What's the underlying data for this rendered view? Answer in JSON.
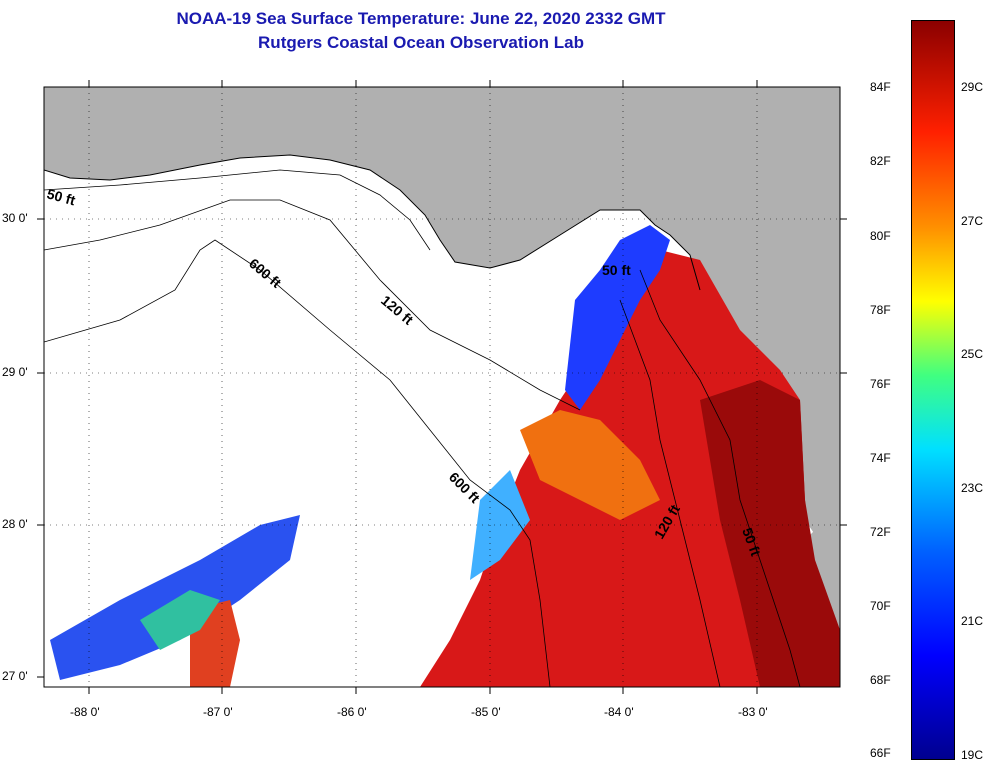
{
  "header": {
    "title": "NOAA-19 Sea Surface Temperature:  June 22, 2020 2332 GMT",
    "subtitle": "Rutgers Coastal Ocean Observation Lab"
  },
  "map": {
    "lat_labels": [
      "30 0'",
      "29 0'",
      "28 0'",
      "27 0'"
    ],
    "lon_labels": [
      "-88 0'",
      "-87 0'",
      "-86 0'",
      "-85 0'",
      "-84 0'",
      "-83 0'"
    ],
    "contours": [
      "50 ft",
      "600 ft",
      "120 ft",
      "50 ft",
      "600 ft",
      "120 ft",
      "50 ft"
    ]
  },
  "colorbar": {
    "fahrenheit": [
      "84F",
      "82F",
      "80F",
      "78F",
      "76F",
      "74F",
      "72F",
      "70F",
      "68F",
      "66F"
    ],
    "celsius": [
      "29C",
      "27C",
      "25C",
      "23C",
      "21C",
      "19C"
    ]
  }
}
